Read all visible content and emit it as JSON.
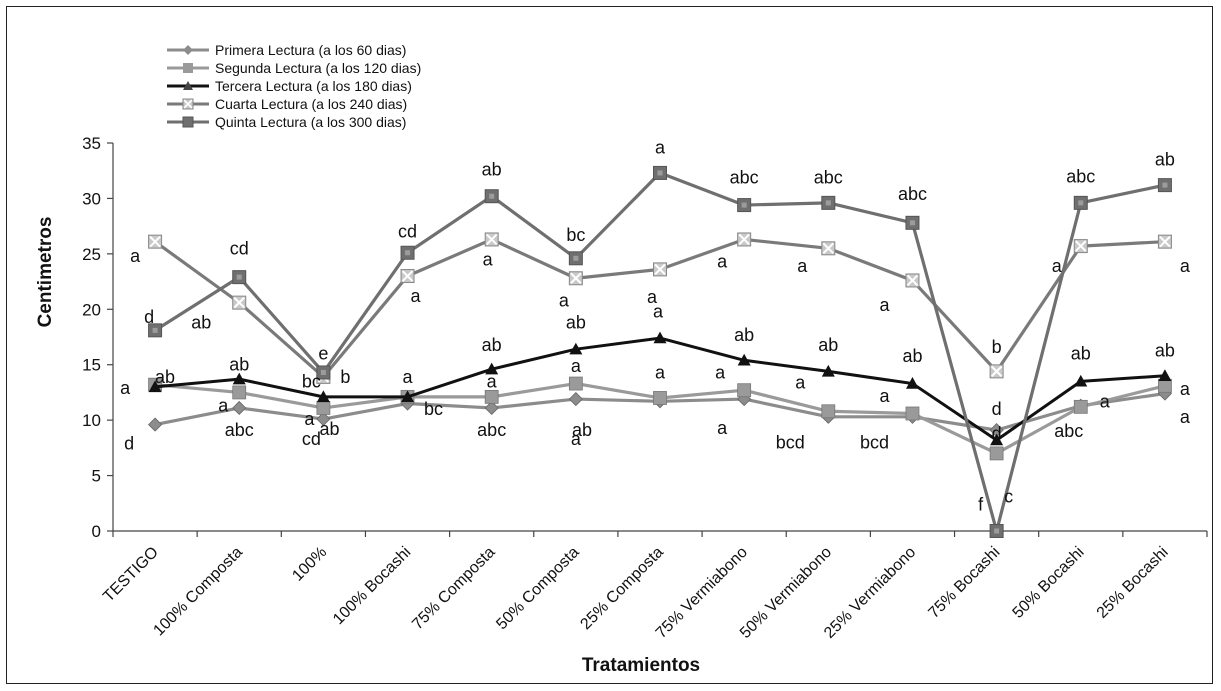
{
  "chart_data": {
    "type": "line",
    "xlabel": "Tratamientos",
    "ylabel": "Centimetros",
    "ylim": [
      0,
      35
    ],
    "yticks": [
      0,
      5,
      10,
      15,
      20,
      25,
      30,
      35
    ],
    "grid": false,
    "legend_position": "top-left",
    "categories": [
      "TESTIGO",
      "100% Composta",
      "100%",
      "100%  Bocashi",
      "75% Composta",
      "50% Composta",
      "25% Composta",
      "75% Vermiabono",
      "50% Vermiabono",
      "25% Vermiabono",
      "75% Bocashi",
      "50% Bocashi",
      "25% Bocashi"
    ],
    "series": [
      {
        "name": "Primera Lectura (a los 60 dias)",
        "color": "#8c8c8c",
        "marker": "diamond",
        "values": [
          9.6,
          11.1,
          10.1,
          11.5,
          11.1,
          11.9,
          11.7,
          11.9,
          10.3,
          10.3,
          9.1,
          11.3,
          12.4
        ]
      },
      {
        "name": "Segunda Lectura (a los 120 dias)",
        "color": "#9a9a9a",
        "marker": "square",
        "values": [
          13.2,
          12.5,
          11.1,
          12.1,
          12.1,
          13.3,
          12.0,
          12.7,
          10.8,
          10.6,
          7.0,
          11.2,
          13.1
        ]
      },
      {
        "name": "Tercera Lectura (a los 180 dias)",
        "color": "#111111",
        "marker": "triangle",
        "values": [
          13.0,
          13.7,
          12.1,
          12.1,
          14.6,
          16.4,
          17.4,
          15.4,
          14.4,
          13.3,
          8.2,
          13.5,
          14.0
        ]
      },
      {
        "name": "Cuarta Lectura (a los 240 dias)",
        "color": "#7a7a7a",
        "marker": "x-square",
        "values": [
          26.1,
          20.6,
          13.9,
          23.0,
          26.3,
          22.8,
          23.6,
          26.3,
          25.5,
          22.6,
          14.4,
          25.7,
          26.1
        ]
      },
      {
        "name": "Quinta Lectura (a los 300 dias)",
        "color": "#6f6f6f",
        "marker": "square-dot",
        "values": [
          18.1,
          22.9,
          14.3,
          25.1,
          30.2,
          24.6,
          32.3,
          29.4,
          29.6,
          27.8,
          0.0,
          29.6,
          31.2
        ]
      }
    ],
    "annotations": [
      {
        "text": "a",
        "category": 0,
        "y": 24.8
      },
      {
        "text": "d",
        "category": 0,
        "y": 19.3
      },
      {
        "text": "a",
        "category": 0,
        "y": 12.9
      },
      {
        "text": "ab",
        "category": 0,
        "y": 13.9
      },
      {
        "text": "d",
        "category": 0,
        "y": 7.9
      },
      {
        "text": "cd",
        "category": 1,
        "y": 25.5
      },
      {
        "text": "ab",
        "category": 1,
        "y": 18.8
      },
      {
        "text": "ab",
        "category": 1,
        "y": 15.0
      },
      {
        "text": "a",
        "category": 1,
        "y": 11.3
      },
      {
        "text": "abc",
        "category": 1,
        "y": 9.1
      },
      {
        "text": "e",
        "category": 2,
        "y": 16.0
      },
      {
        "text": "b",
        "category": 2,
        "y": 13.9
      },
      {
        "text": "bc",
        "category": 2,
        "y": 13.5
      },
      {
        "text": "a",
        "category": 2,
        "y": 10.1
      },
      {
        "text": "cd",
        "category": 2,
        "y": 8.3
      },
      {
        "text": "cd",
        "category": 3,
        "y": 27.0
      },
      {
        "text": "a",
        "category": 3,
        "y": 21.2
      },
      {
        "text": "a",
        "category": 3,
        "y": 13.9
      },
      {
        "text": "bc",
        "category": 3,
        "y": 11.0
      },
      {
        "text": "ab",
        "category": 3,
        "y": 9.2
      },
      {
        "text": "ab",
        "category": 4,
        "y": 32.6
      },
      {
        "text": "a",
        "category": 4,
        "y": 24.5
      },
      {
        "text": "ab",
        "category": 4,
        "y": 16.8
      },
      {
        "text": "a",
        "category": 4,
        "y": 13.5
      },
      {
        "text": "abc",
        "category": 4,
        "y": 9.1
      },
      {
        "text": "bc",
        "category": 5,
        "y": 26.7
      },
      {
        "text": "a",
        "category": 5,
        "y": 20.8
      },
      {
        "text": "ab",
        "category": 5,
        "y": 18.8
      },
      {
        "text": "a",
        "category": 5,
        "y": 14.9
      },
      {
        "text": "a",
        "category": 5,
        "y": 8.3
      },
      {
        "text": "a",
        "category": 6,
        "y": 34.6
      },
      {
        "text": "a",
        "category": 6,
        "y": 21.1
      },
      {
        "text": "a",
        "category": 6,
        "y": 19.8
      },
      {
        "text": "a",
        "category": 6,
        "y": 14.3
      },
      {
        "text": "ab",
        "category": 6,
        "y": 9.1
      },
      {
        "text": "abc",
        "category": 7,
        "y": 31.9
      },
      {
        "text": "a",
        "category": 7,
        "y": 24.3
      },
      {
        "text": "ab",
        "category": 7,
        "y": 17.7
      },
      {
        "text": "a",
        "category": 7,
        "y": 14.3
      },
      {
        "text": "a",
        "category": 7,
        "y": 9.3
      },
      {
        "text": "abc",
        "category": 8,
        "y": 31.9
      },
      {
        "text": "a",
        "category": 8,
        "y": 23.9
      },
      {
        "text": "ab",
        "category": 8,
        "y": 16.8
      },
      {
        "text": "a",
        "category": 8,
        "y": 13.4
      },
      {
        "text": "bcd",
        "category": 8,
        "y": 8.0
      },
      {
        "text": "abc",
        "category": 9,
        "y": 30.4
      },
      {
        "text": "a",
        "category": 9,
        "y": 20.4
      },
      {
        "text": "ab",
        "category": 9,
        "y": 15.8
      },
      {
        "text": "a",
        "category": 9,
        "y": 12.2
      },
      {
        "text": "bcd",
        "category": 9,
        "y": 8.0
      },
      {
        "text": "b",
        "category": 10,
        "y": 16.6
      },
      {
        "text": "d",
        "category": 10,
        "y": 11.0
      },
      {
        "text": "d",
        "category": 10,
        "y": 8.8
      },
      {
        "text": "c",
        "category": 10,
        "y": 3.1
      },
      {
        "text": "f",
        "category": 10,
        "y": 2.4
      },
      {
        "text": "abc",
        "category": 11,
        "y": 32.0
      },
      {
        "text": "a",
        "category": 11,
        "y": 23.9
      },
      {
        "text": "ab",
        "category": 11,
        "y": 16.0
      },
      {
        "text": "a",
        "category": 11,
        "y": 11.7
      },
      {
        "text": "abc",
        "category": 11,
        "y": 9.0
      },
      {
        "text": "ab",
        "category": 12,
        "y": 33.5
      },
      {
        "text": "a",
        "category": 12,
        "y": 23.9
      },
      {
        "text": "ab",
        "category": 12,
        "y": 16.3
      },
      {
        "text": "a",
        "category": 12,
        "y": 12.8
      },
      {
        "text": "a",
        "category": 12,
        "y": 10.3
      }
    ]
  }
}
